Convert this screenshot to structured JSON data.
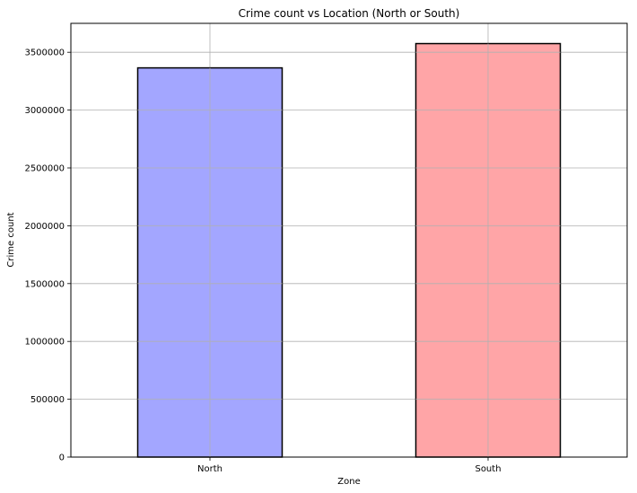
{
  "chart_data": {
    "type": "bar",
    "title": "Crime count vs Location (North or South)",
    "xlabel": "Zone",
    "ylabel": "Crime count",
    "categories": [
      "North",
      "South"
    ],
    "values": [
      3365000,
      3575000
    ],
    "colors": [
      "#a3a6ff",
      "#ffa5a7"
    ],
    "edge_color": "#000000",
    "ylim": [
      0,
      3750000
    ],
    "yticks": [
      0,
      500000,
      1000000,
      1500000,
      2000000,
      2500000,
      3000000,
      3500000
    ],
    "ytick_labels": [
      "0",
      "500000",
      "1000000",
      "1500000",
      "2000000",
      "2500000",
      "3000000",
      "3500000"
    ],
    "grid": true,
    "legend": "none"
  }
}
